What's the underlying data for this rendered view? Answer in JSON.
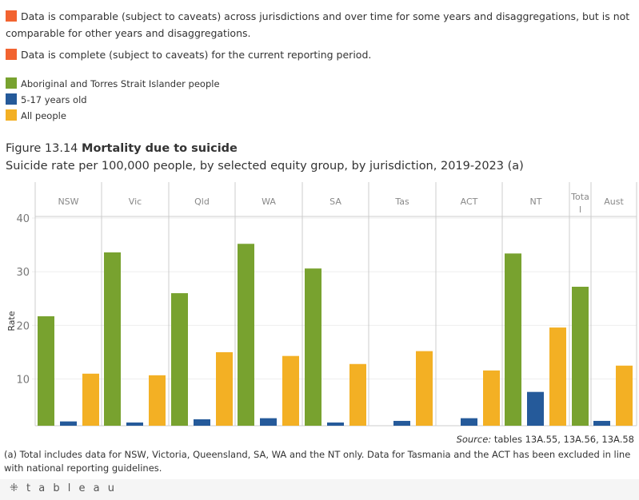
{
  "notes_legend": [
    {
      "text": "Data is comparable (subject to caveats) across jurisdictions and over time for some years and disaggregations, but is not comparable for other years and disaggregations.",
      "color": "#f26330"
    },
    {
      "text": "Data is complete (subject to caveats) for the current reporting period.",
      "color": "#f26330"
    }
  ],
  "figure_label": "Figure 13.14",
  "figure_title": "Mortality due to suicide",
  "source_label": "Source:",
  "source_text": " tables 13A.55, 13A.56, 13A.58",
  "footnote": "(a) Total includes data for NSW, Victoria, Queensland, SA, WA and the NT only. Data for Tasmania and the ACT has been excluded in line with national reporting guidelines.",
  "footer": {
    "logo": "+tableau"
  },
  "chart_data": {
    "type": "bar",
    "subtitle": "Suicide rate per 100,000 people, by selected equity group, by jurisdiction, 2019-2023 (a)",
    "ylabel": "Rate",
    "ylim": [
      1.3,
      40.3
    ],
    "yticks": [
      10,
      20,
      30,
      40
    ],
    "grid": true,
    "legend_position": "top-left",
    "categories": [
      "NSW",
      "Vic",
      "Qld",
      "WA",
      "SA",
      "Tas",
      "ACT",
      "NT",
      "Total",
      "Aust"
    ],
    "category_display": [
      "NSW",
      "Vic",
      "Qld",
      "WA",
      "SA",
      "Tas",
      "ACT",
      "NT",
      "Tota\nl",
      "Aust"
    ],
    "series": [
      {
        "name": "Aboriginal and Torres Strait Islander people",
        "color": "#78a22f",
        "values": [
          21.7,
          33.6,
          26.0,
          35.2,
          30.6,
          null,
          null,
          33.4,
          27.2,
          null
        ]
      },
      {
        "name": "5-17 years old",
        "color": "#255a9a",
        "values": [
          2.1,
          1.9,
          2.5,
          2.7,
          1.9,
          2.2,
          2.7,
          7.6,
          null,
          2.2
        ]
      },
      {
        "name": "All people",
        "color": "#f3b024",
        "values": [
          11.0,
          10.7,
          15.0,
          14.3,
          12.8,
          15.2,
          11.6,
          19.6,
          null,
          12.5
        ]
      }
    ]
  }
}
